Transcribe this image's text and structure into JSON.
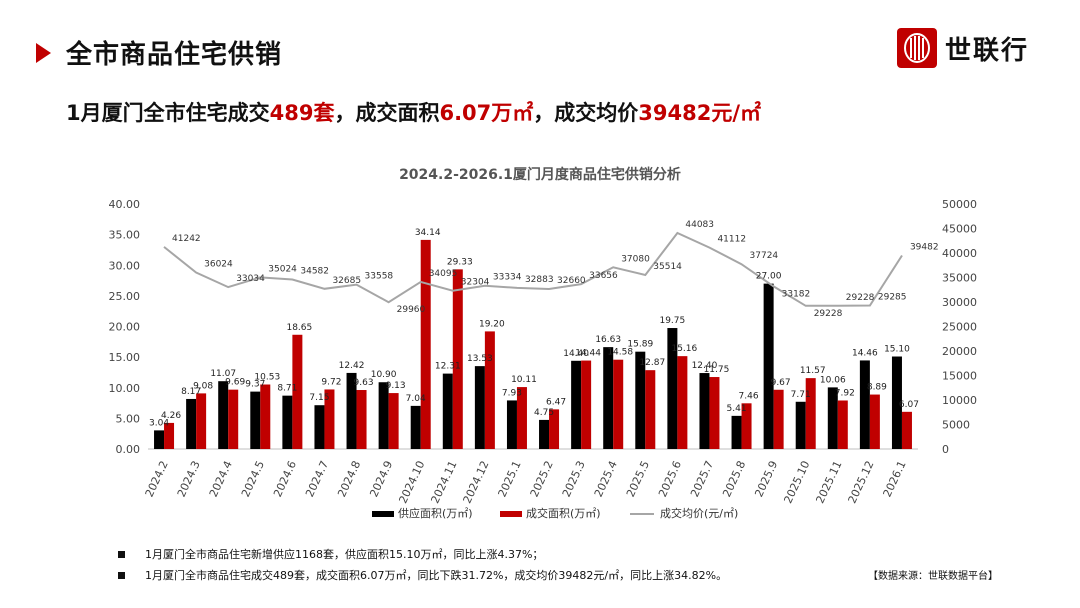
{
  "header": {
    "title": "全市商品住宅供销",
    "brand": "世联行"
  },
  "headline": {
    "p1": "1月厦门全市住宅成交",
    "v1": "489套",
    "p2": "，成交面积",
    "v2": "6.07万㎡",
    "p3": "，成交均价",
    "v3": "39482元/㎡"
  },
  "colors": {
    "supply": "#000000",
    "deal": "#c00000",
    "price": "#a6a6a6",
    "accent": "#c00000"
  },
  "chart_data": {
    "type": "bar+line",
    "title": "2024.2-2026.1厦门月度商品住宅供销分析",
    "categories": [
      "2024.2",
      "2024.3",
      "2024.4",
      "2024.5",
      "2024.6",
      "2024.7",
      "2024.8",
      "2024.9",
      "2024.10",
      "2024.11",
      "2024.12",
      "2025.1",
      "2025.2",
      "2025.3",
      "2025.4",
      "2025.5",
      "2025.6",
      "2025.7",
      "2025.8",
      "2025.9",
      "2025.10",
      "2025.11",
      "2025.12",
      "2026.1"
    ],
    "series": [
      {
        "name": "供应面积(万㎡)",
        "axis": "left",
        "type": "bar",
        "values": [
          3.04,
          8.17,
          11.07,
          9.37,
          8.71,
          7.15,
          12.42,
          10.9,
          7.04,
          12.31,
          13.53,
          7.93,
          4.75,
          14.4,
          16.63,
          15.89,
          19.75,
          12.4,
          5.41,
          27.0,
          7.71,
          10.06,
          14.46,
          15.1
        ],
        "labels": [
          "3.04",
          "8.17",
          "11.07",
          "9.37",
          "8.71",
          "7.15",
          "12.42",
          "10.90",
          "7.04",
          "12.31",
          "13.53",
          "7.93",
          "4.75",
          "14.40",
          "16.63",
          "15.89",
          "19.75",
          "12.40",
          "5.41",
          "27.00",
          "7.71",
          "10.06",
          "14.46",
          "15.10"
        ]
      },
      {
        "name": "成交面积(万㎡)",
        "axis": "left",
        "type": "bar",
        "values": [
          4.26,
          9.08,
          9.69,
          10.53,
          18.65,
          9.72,
          9.63,
          9.13,
          34.14,
          29.33,
          19.2,
          10.11,
          6.47,
          14.44,
          14.58,
          12.87,
          15.16,
          11.75,
          7.46,
          9.67,
          11.57,
          7.92,
          8.89,
          6.07
        ],
        "labels": [
          "4.26",
          "9.08",
          "9.69",
          "10.53",
          "18.65",
          "9.72",
          "9.63",
          "9.13",
          "34.14",
          "29.33",
          "19.20",
          "10.11",
          "6.47",
          "14.44",
          "14.58",
          "12.87",
          "15.16",
          "11.75",
          "7.46",
          "9.67",
          "11.57",
          "7.92",
          "8.89",
          "6.07"
        ]
      },
      {
        "name": "成交均价(元/㎡)",
        "axis": "right",
        "type": "line",
        "values": [
          41242,
          36024,
          33034,
          35024,
          34582,
          32685,
          33558,
          29960,
          34095,
          32304,
          33334,
          32883,
          32660,
          33656,
          37080,
          35514,
          44083,
          41112,
          37724,
          33182,
          29228,
          29228,
          29285,
          39482
        ],
        "labels": [
          "41242",
          "36024",
          "33034",
          "35024",
          "34582",
          "32685",
          "33558",
          "29960",
          "34095",
          "32304",
          "33334",
          "32883",
          "32660",
          "33656",
          "37080",
          "35514",
          "44083",
          "41112",
          "37724",
          "33182",
          "29228",
          "29228",
          "29285",
          "39482"
        ]
      }
    ],
    "y_left": {
      "min": 0,
      "max": 40,
      "step": 5,
      "ticks": [
        "0.00",
        "5.00",
        "10.00",
        "15.00",
        "20.00",
        "25.00",
        "30.00",
        "35.00",
        "40.00"
      ]
    },
    "y_right": {
      "min": 0,
      "max": 50000,
      "step": 5000,
      "ticks": [
        "0",
        "5000",
        "10000",
        "15000",
        "20000",
        "25000",
        "30000",
        "35000",
        "40000",
        "45000",
        "50000"
      ]
    },
    "legend": [
      "供应面积(万㎡)",
      "成交面积(万㎡)",
      "成交均价(元/㎡)"
    ],
    "legend_position": "bottom",
    "grid": false
  },
  "notes": [
    {
      "text": "1月厦门全市商品住宅新增供应1168套，供应面积15.10万㎡，同比上涨4.37%；"
    },
    {
      "text": "1月厦门全市商品住宅成交489套，成交面积6.07万㎡，同比下跌31.72%，成交均价39482元/㎡，同比上涨34.82%。"
    }
  ],
  "source": "【数据来源：世联数据平台】"
}
